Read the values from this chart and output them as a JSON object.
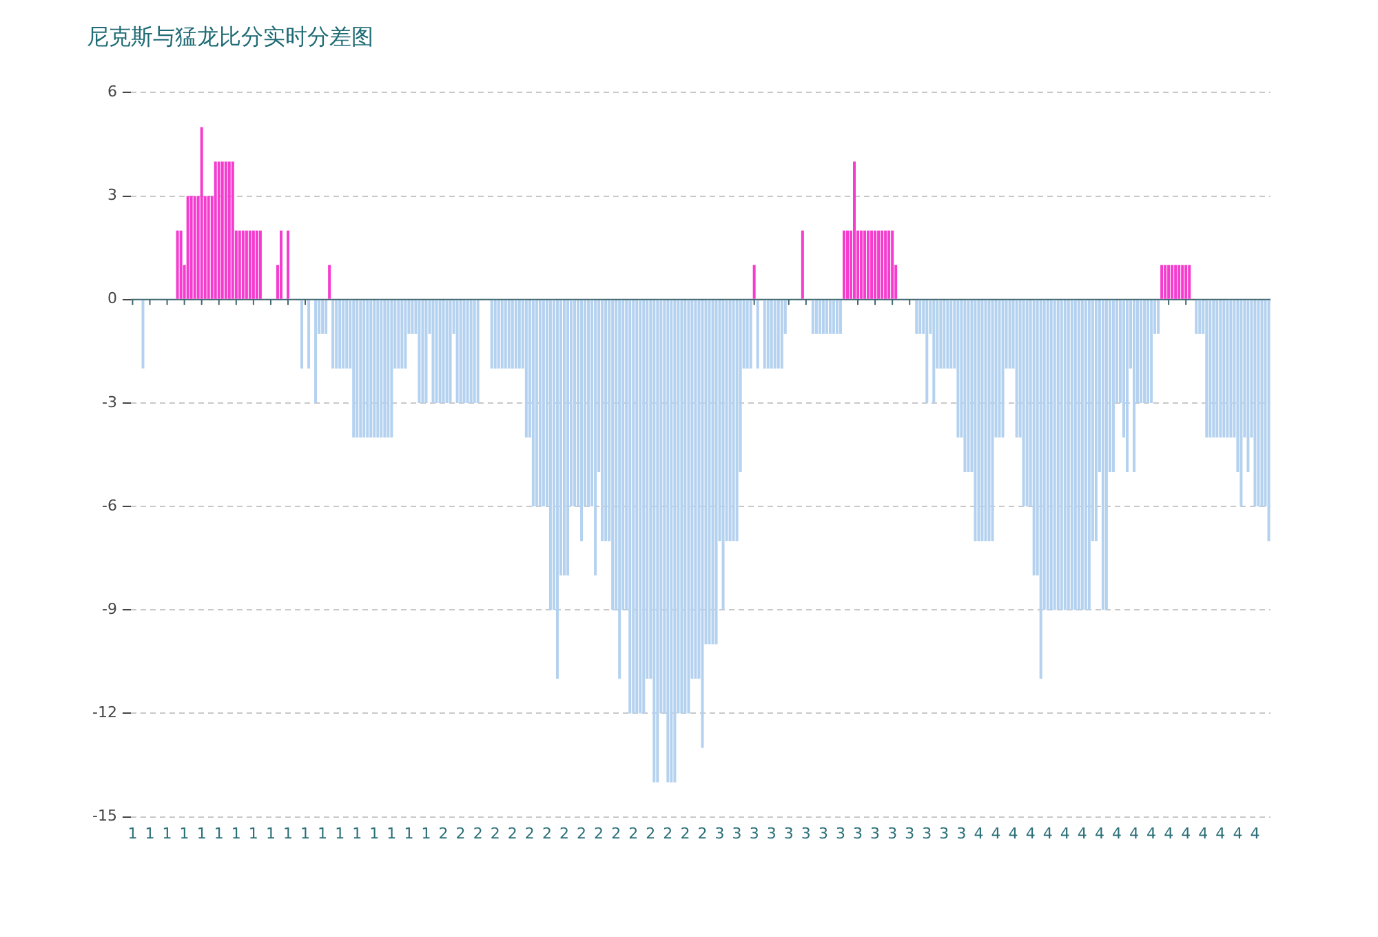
{
  "chart_data": {
    "type": "bar",
    "title": "尼克斯与猛龙比分实时分差图",
    "categories": [
      "1",
      null,
      null,
      null,
      null,
      "1",
      null,
      null,
      null,
      null,
      "1",
      null,
      null,
      null,
      null,
      "1",
      null,
      null,
      null,
      null,
      "1",
      null,
      null,
      null,
      null,
      "1",
      null,
      null,
      null,
      null,
      "1",
      null,
      null,
      null,
      null,
      "1",
      null,
      null,
      null,
      null,
      "1",
      null,
      null,
      null,
      null,
      "1",
      null,
      null,
      null,
      null,
      "1",
      null,
      null,
      null,
      null,
      "1",
      null,
      null,
      null,
      null,
      "1",
      null,
      null,
      null,
      null,
      "1",
      null,
      null,
      null,
      null,
      "1",
      null,
      null,
      null,
      null,
      "1",
      null,
      null,
      null,
      null,
      "1",
      null,
      null,
      null,
      null,
      "1",
      null,
      null,
      null,
      null,
      "2",
      null,
      null,
      null,
      null,
      "2",
      null,
      null,
      null,
      null,
      "2",
      null,
      null,
      null,
      null,
      "2",
      null,
      null,
      null,
      null,
      "2",
      null,
      null,
      null,
      null,
      "2",
      null,
      null,
      null,
      null,
      "2",
      null,
      null,
      null,
      null,
      "2",
      null,
      null,
      null,
      null,
      "2",
      null,
      null,
      null,
      null,
      "2",
      null,
      null,
      null,
      null,
      "2",
      null,
      null,
      null,
      null,
      "2",
      null,
      null,
      null,
      null,
      "2",
      null,
      null,
      null,
      null,
      "2",
      null,
      null,
      null,
      null,
      "2",
      null,
      null,
      null,
      null,
      "2",
      null,
      null,
      null,
      null,
      "3",
      null,
      null,
      null,
      null,
      "3",
      null,
      null,
      null,
      null,
      "3",
      null,
      null,
      null,
      null,
      "3",
      null,
      null,
      null,
      null,
      "3",
      null,
      null,
      null,
      null,
      "3",
      null,
      null,
      null,
      null,
      "3",
      null,
      null,
      null,
      null,
      "3",
      null,
      null,
      null,
      null,
      "3",
      null,
      null,
      null,
      null,
      "3",
      null,
      null,
      null,
      null,
      "3",
      null,
      null,
      null,
      null,
      "3",
      null,
      null,
      null,
      null,
      "3",
      null,
      null,
      null,
      null,
      "3",
      null,
      null,
      null,
      null,
      "3",
      null,
      null,
      null,
      null,
      "4",
      null,
      null,
      null,
      null,
      "4",
      null,
      null,
      null,
      null,
      "4",
      null,
      null,
      null,
      null,
      "4",
      null,
      null,
      null,
      null,
      "4",
      null,
      null,
      null,
      null,
      "4",
      null,
      null,
      null,
      null,
      "4",
      null,
      null,
      null,
      null,
      "4",
      null,
      null,
      null,
      null,
      "4",
      null,
      null,
      null,
      null,
      "4",
      null,
      null,
      null,
      null,
      "4",
      null,
      null,
      null,
      null,
      "4",
      null,
      null,
      null,
      null,
      "4",
      null,
      null,
      null,
      null,
      "4",
      null,
      null,
      null,
      null,
      "4",
      null,
      null,
      null,
      null,
      "4",
      null,
      null,
      null,
      null,
      "4",
      null,
      null,
      null,
      null
    ],
    "values": [
      0,
      0,
      0,
      -2,
      0,
      0,
      0,
      0,
      0,
      0,
      0,
      0,
      0,
      2,
      2,
      1,
      3,
      3,
      3,
      3,
      5,
      3,
      3,
      3,
      4,
      4,
      4,
      4,
      4,
      4,
      2,
      2,
      2,
      2,
      2,
      2,
      2,
      2,
      0,
      0,
      0,
      0,
      1,
      2,
      0,
      2,
      0,
      0,
      0,
      -2,
      0,
      -2,
      0,
      -3,
      -1,
      -1,
      -1,
      1,
      -2,
      -2,
      -2,
      -2,
      -2,
      -2,
      -4,
      -4,
      -4,
      -4,
      -4,
      -4,
      -4,
      -4,
      -4,
      -4,
      -4,
      -4,
      -2,
      -2,
      -2,
      -2,
      -1,
      -1,
      -1,
      -3,
      -3,
      -3,
      -1,
      -3,
      -3,
      -3,
      -3,
      -3,
      -3,
      -1,
      -3,
      -3,
      -3,
      -3,
      -3,
      -3,
      -3,
      0,
      0,
      0,
      -2,
      -2,
      -2,
      -2,
      -2,
      -2,
      -2,
      -2,
      -2,
      -2,
      -4,
      -4,
      -6,
      -6,
      -6,
      -6,
      -6,
      -9,
      -9,
      -11,
      -8,
      -8,
      -8,
      -6,
      -6,
      -6,
      -7,
      -6,
      -6,
      -6,
      -8,
      -5,
      -7,
      -7,
      -7,
      -9,
      -9,
      -11,
      -9,
      -9,
      -12,
      -12,
      -12,
      -12,
      -12,
      -11,
      -11,
      -14,
      -14,
      -12,
      -12,
      -14,
      -14,
      -14,
      -12,
      -12,
      -12,
      -12,
      -11,
      -11,
      -11,
      -13,
      -10,
      -10,
      -10,
      -10,
      -7,
      -9,
      -7,
      -7,
      -7,
      -7,
      -5,
      -2,
      -2,
      -2,
      1,
      -2,
      0,
      -2,
      -2,
      -2,
      -2,
      -2,
      -2,
      -1,
      0,
      0,
      0,
      0,
      2,
      0,
      0,
      -1,
      -1,
      -1,
      -1,
      -1,
      -1,
      -1,
      -1,
      -1,
      2,
      2,
      2,
      4,
      2,
      2,
      2,
      2,
      2,
      2,
      2,
      2,
      2,
      2,
      2,
      1,
      0,
      0,
      0,
      0,
      0,
      -1,
      -1,
      -1,
      -3,
      -1,
      -3,
      -2,
      -2,
      -2,
      -2,
      -2,
      -2,
      -4,
      -4,
      -5,
      -5,
      -5,
      -7,
      -7,
      -7,
      -7,
      -7,
      -7,
      -4,
      -4,
      -4,
      -2,
      -2,
      -2,
      -4,
      -4,
      -6,
      -6,
      -6,
      -8,
      -8,
      -11,
      -9,
      -9,
      -9,
      -9,
      -9,
      -9,
      -9,
      -9,
      -9,
      -9,
      -9,
      -9,
      -9,
      -9,
      -7,
      -7,
      -5,
      -9,
      -9,
      -5,
      -5,
      -3,
      -3,
      -4,
      -5,
      -2,
      -5,
      -3,
      -3,
      -3,
      -3,
      -3,
      -1,
      -1,
      1,
      1,
      1,
      1,
      1,
      1,
      1,
      1,
      1,
      0,
      -1,
      -1,
      -1,
      -4,
      -4,
      -4,
      -4,
      -4,
      -4,
      -4,
      -4,
      -4,
      -5,
      -6,
      -4,
      -5,
      -4,
      -6,
      -6,
      -6,
      -6,
      -7
    ],
    "colors": [
      "#b4d2f0",
      "#b4d2f0",
      "#b4d2f0",
      "#b4d2f0",
      "#b4d2f0",
      "#b4d2f0",
      "#b4d2f0",
      "#b4d2f0",
      "#b4d2f0",
      "#b4d2f0",
      "#b4d2f0",
      "#b4d2f0",
      "#b4d2f0",
      "#f53ccf",
      "#f53ccf",
      "#f53ccf",
      "#f53ccf",
      "#f53ccf",
      "#f53ccf",
      "#f53ccf",
      "#f53ccf",
      "#f53ccf",
      "#f53ccf",
      "#f53ccf",
      "#f53ccf",
      "#f53ccf",
      "#f53ccf",
      "#f53ccf",
      "#f53ccf",
      "#f53ccf",
      "#f53ccf",
      "#f53ccf",
      "#f53ccf",
      "#f53ccf",
      "#f53ccf",
      "#f53ccf",
      "#f53ccf",
      "#f53ccf",
      "#b4d2f0",
      "#b4d2f0",
      "#b4d2f0",
      "#b4d2f0",
      "#f53ccf",
      "#f53ccf",
      "#b4d2f0",
      "#f53ccf",
      "#b4d2f0",
      "#b4d2f0",
      "#b4d2f0",
      "#b4d2f0",
      "#b4d2f0",
      "#b4d2f0",
      "#b4d2f0",
      "#b4d2f0",
      "#b4d2f0",
      "#b4d2f0",
      "#b4d2f0",
      "#f53ccf",
      "#b4d2f0",
      "#b4d2f0",
      "#b4d2f0",
      "#b4d2f0",
      "#b4d2f0",
      "#b4d2f0",
      "#b4d2f0",
      "#b4d2f0",
      "#b4d2f0",
      "#b4d2f0",
      "#b4d2f0",
      "#b4d2f0",
      "#b4d2f0",
      "#b4d2f0",
      "#b4d2f0",
      "#b4d2f0",
      "#b4d2f0",
      "#b4d2f0",
      "#b4d2f0",
      "#b4d2f0",
      "#b4d2f0",
      "#b4d2f0",
      "#b4d2f0",
      "#b4d2f0",
      "#b4d2f0",
      "#b4d2f0",
      "#b4d2f0",
      "#b4d2f0",
      "#b4d2f0",
      "#b4d2f0",
      "#b4d2f0",
      "#b4d2f0",
      "#b4d2f0",
      "#b4d2f0",
      "#b4d2f0",
      "#b4d2f0",
      "#b4d2f0",
      "#b4d2f0",
      "#b4d2f0",
      "#b4d2f0",
      "#b4d2f0",
      "#b4d2f0",
      "#b4d2f0",
      "#b4d2f0",
      "#b4d2f0",
      "#b4d2f0",
      "#b4d2f0",
      "#b4d2f0",
      "#b4d2f0",
      "#b4d2f0",
      "#b4d2f0",
      "#b4d2f0",
      "#b4d2f0",
      "#b4d2f0",
      "#b4d2f0",
      "#b4d2f0",
      "#b4d2f0",
      "#b4d2f0",
      "#b4d2f0",
      "#b4d2f0",
      "#b4d2f0",
      "#b4d2f0",
      "#b4d2f0",
      "#b4d2f0",
      "#b4d2f0",
      "#b4d2f0",
      "#b4d2f0",
      "#b4d2f0",
      "#b4d2f0",
      "#b4d2f0",
      "#b4d2f0",
      "#b4d2f0",
      "#b4d2f0",
      "#b4d2f0",
      "#b4d2f0",
      "#b4d2f0",
      "#b4d2f0",
      "#b4d2f0",
      "#b4d2f0",
      "#b4d2f0",
      "#b4d2f0",
      "#b4d2f0",
      "#b4d2f0",
      "#b4d2f0",
      "#b4d2f0",
      "#b4d2f0",
      "#b4d2f0",
      "#b4d2f0",
      "#b4d2f0",
      "#b4d2f0",
      "#b4d2f0",
      "#b4d2f0",
      "#b4d2f0",
      "#b4d2f0",
      "#b4d2f0",
      "#b4d2f0",
      "#b4d2f0",
      "#b4d2f0",
      "#b4d2f0",
      "#b4d2f0",
      "#b4d2f0",
      "#b4d2f0",
      "#b4d2f0",
      "#b4d2f0",
      "#b4d2f0",
      "#b4d2f0",
      "#b4d2f0",
      "#b4d2f0",
      "#b4d2f0",
      "#b4d2f0",
      "#b4d2f0",
      "#b4d2f0",
      "#b4d2f0",
      "#b4d2f0",
      "#b4d2f0",
      "#b4d2f0",
      "#b4d2f0",
      "#b4d2f0",
      "#b4d2f0",
      "#b4d2f0",
      "#b4d2f0",
      "#b4d2f0",
      "#f53ccf",
      "#b4d2f0",
      "#b4d2f0",
      "#b4d2f0",
      "#b4d2f0",
      "#b4d2f0",
      "#b4d2f0",
      "#b4d2f0",
      "#b4d2f0",
      "#b4d2f0",
      "#b4d2f0",
      "#b4d2f0",
      "#b4d2f0",
      "#b4d2f0",
      "#f53ccf",
      "#b4d2f0",
      "#b4d2f0",
      "#b4d2f0",
      "#b4d2f0",
      "#b4d2f0",
      "#b4d2f0",
      "#b4d2f0",
      "#b4d2f0",
      "#b4d2f0",
      "#b4d2f0",
      "#b4d2f0",
      "#f53ccf",
      "#f53ccf",
      "#f53ccf",
      "#f53ccf",
      "#f53ccf",
      "#f53ccf",
      "#f53ccf",
      "#f53ccf",
      "#f53ccf",
      "#f53ccf",
      "#f53ccf",
      "#f53ccf",
      "#f53ccf",
      "#f53ccf",
      "#f53ccf",
      "#f53ccf",
      "#b4d2f0",
      "#b4d2f0",
      "#b4d2f0",
      "#b4d2f0",
      "#b4d2f0",
      "#b4d2f0",
      "#b4d2f0",
      "#b4d2f0",
      "#b4d2f0",
      "#b4d2f0",
      "#b4d2f0",
      "#b4d2f0",
      "#b4d2f0",
      "#b4d2f0",
      "#b4d2f0",
      "#b4d2f0",
      "#b4d2f0",
      "#b4d2f0",
      "#b4d2f0",
      "#b4d2f0",
      "#b4d2f0",
      "#b4d2f0",
      "#b4d2f0",
      "#b4d2f0",
      "#b4d2f0",
      "#b4d2f0",
      "#b4d2f0",
      "#b4d2f0",
      "#b4d2f0",
      "#b4d2f0",
      "#b4d2f0",
      "#b4d2f0",
      "#b4d2f0",
      "#b4d2f0",
      "#b4d2f0",
      "#b4d2f0",
      "#b4d2f0",
      "#b4d2f0",
      "#b4d2f0",
      "#b4d2f0",
      "#b4d2f0",
      "#b4d2f0",
      "#b4d2f0",
      "#b4d2f0",
      "#b4d2f0",
      "#b4d2f0",
      "#b4d2f0",
      "#b4d2f0",
      "#b4d2f0",
      "#b4d2f0",
      "#b4d2f0",
      "#b4d2f0",
      "#b4d2f0",
      "#b4d2f0",
      "#b4d2f0",
      "#b4d2f0",
      "#b4d2f0",
      "#b4d2f0",
      "#b4d2f0",
      "#b4d2f0",
      "#b4d2f0",
      "#b4d2f0",
      "#b4d2f0",
      "#b4d2f0",
      "#b4d2f0",
      "#b4d2f0",
      "#b4d2f0",
      "#b4d2f0",
      "#b4d2f0",
      "#b4d2f0",
      "#b4d2f0",
      "#b4d2f0",
      "#b4d2f0",
      "#b4d2f0",
      "#b4d2f0",
      "#b4d2f0",
      "#f53ccf",
      "#f53ccf",
      "#f53ccf",
      "#f53ccf",
      "#f53ccf",
      "#f53ccf",
      "#f53ccf",
      "#f53ccf",
      "#f53ccf",
      "#b4d2f0",
      "#b4d2f0",
      "#b4d2f0",
      "#b4d2f0",
      "#b4d2f0",
      "#b4d2f0",
      "#b4d2f0",
      "#b4d2f0",
      "#b4d2f0",
      "#b4d2f0",
      "#b4d2f0",
      "#b4d2f0",
      "#b4d2f0",
      "#b4d2f0",
      "#b4d2f0",
      "#b4d2f0",
      "#b4d2f0",
      "#b4d2f0",
      "#b4d2f0",
      "#b4d2f0",
      "#b4d2f0",
      "#b4d2f0",
      "#b4d2f0"
    ],
    "ref_lines": [
      {
        "axis": "y",
        "value": 0,
        "color": "#3f6870"
      }
    ],
    "ylim": [
      -15,
      6
    ],
    "yticks": [
      -15,
      -12,
      -9,
      -6,
      -3,
      0,
      3,
      6
    ],
    "grid": "y"
  }
}
